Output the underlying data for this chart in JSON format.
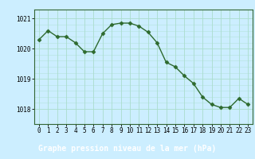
{
  "x": [
    0,
    1,
    2,
    3,
    4,
    5,
    6,
    7,
    8,
    9,
    10,
    11,
    12,
    13,
    14,
    15,
    16,
    17,
    18,
    19,
    20,
    21,
    22,
    23
  ],
  "y": [
    1020.3,
    1020.6,
    1020.4,
    1020.4,
    1020.2,
    1019.9,
    1019.9,
    1020.5,
    1020.8,
    1020.85,
    1020.85,
    1020.75,
    1020.55,
    1020.2,
    1019.55,
    1019.4,
    1019.1,
    1018.85,
    1018.4,
    1018.15,
    1018.05,
    1018.05,
    1018.35,
    1018.15
  ],
  "line_color": "#2d6a2d",
  "marker": "D",
  "marker_size": 2.5,
  "background_color": "#cceeff",
  "grid_color": "#aaddcc",
  "xlabel": "Graphe pression niveau de la mer (hPa)",
  "xlabel_fontsize": 7,
  "ylabel_ticks": [
    1018,
    1019,
    1020,
    1021
  ],
  "xlim": [
    -0.5,
    23.5
  ],
  "ylim": [
    1017.5,
    1021.3
  ],
  "xticks": [
    0,
    1,
    2,
    3,
    4,
    5,
    6,
    7,
    8,
    9,
    10,
    11,
    12,
    13,
    14,
    15,
    16,
    17,
    18,
    19,
    20,
    21,
    22,
    23
  ],
  "tick_fontsize": 5.5,
  "axis_color": "#336633",
  "bottom_bar_color": "#336633",
  "bottom_bar_height": 0.13
}
